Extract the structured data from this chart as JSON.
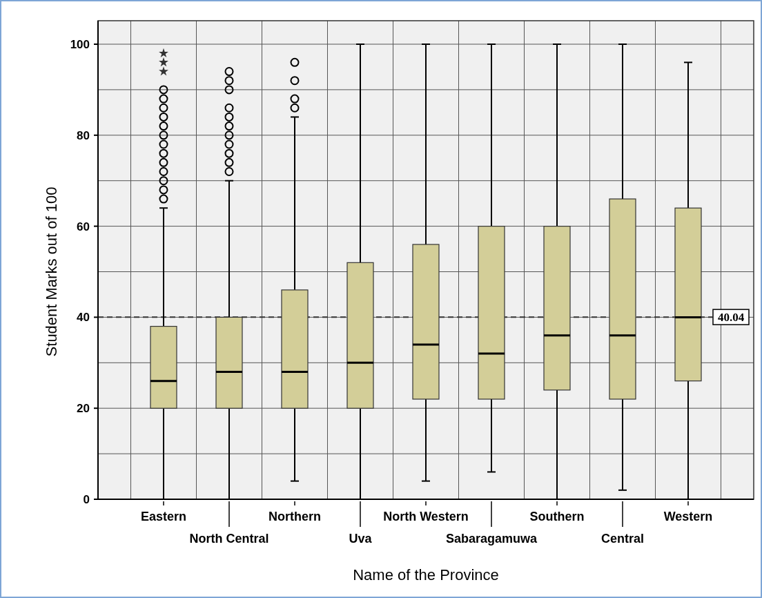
{
  "chart_data": {
    "type": "box",
    "xlabel": "Name of the Province",
    "ylabel": "Student Marks out of 100",
    "categories": [
      "Eastern",
      "North Central",
      "Northern",
      "Uva",
      "North Western",
      "Sabaragamuwa",
      "Southern",
      "Central",
      "Western"
    ],
    "color": "#d3ce98",
    "boxes": [
      {
        "low": 0,
        "q1": 20,
        "median": 26,
        "q3": 38,
        "high": 64,
        "outliers": [
          66,
          68,
          70,
          72,
          74,
          76,
          78,
          80,
          82,
          84,
          86,
          88,
          90
        ]
      },
      {
        "low": 0,
        "q1": 20,
        "median": 28,
        "q3": 40,
        "high": 70,
        "outliers": [
          72,
          74,
          76,
          78,
          80,
          82,
          84,
          86,
          90,
          92,
          94
        ]
      },
      {
        "low": 4,
        "q1": 20,
        "median": 28,
        "q3": 46,
        "high": 84,
        "outliers": [
          86,
          88,
          92,
          96
        ]
      },
      {
        "low": 0,
        "q1": 20,
        "median": 30,
        "q3": 52,
        "high": 100
      },
      {
        "low": 4,
        "q1": 22,
        "median": 34,
        "q3": 56,
        "high": 100
      },
      {
        "low": 6,
        "q1": 22,
        "median": 32,
        "q3": 60,
        "high": 100
      },
      {
        "low": 0,
        "q1": 24,
        "median": 36,
        "q3": 60,
        "high": 100
      },
      {
        "low": 2,
        "q1": 22,
        "median": 36,
        "q3": 66,
        "high": 100
      },
      {
        "low": 0,
        "q1": 26,
        "median": 40,
        "q3": 64,
        "high": 96
      }
    ],
    "series": [
      {
        "type": "scatter",
        "marker": "star",
        "color": "#333333",
        "x": [
          "Eastern",
          "Eastern",
          "Eastern"
        ],
        "values": [
          94,
          96,
          98
        ]
      }
    ],
    "ylim": [
      0,
      100
    ],
    "yticks": [
      0,
      {
        "value": 10,
        "label": null
      },
      20,
      {
        "value": 30,
        "label": null
      },
      40,
      {
        "value": 50,
        "label": null
      },
      60,
      {
        "value": 70,
        "label": null
      },
      80,
      {
        "value": 90,
        "label": null
      },
      100
    ],
    "grid": true,
    "ref_lines": [
      {
        "axis": "y",
        "value": 40.04,
        "label": "40.04",
        "line_style": "dashed",
        "color": "#333333"
      }
    ]
  }
}
